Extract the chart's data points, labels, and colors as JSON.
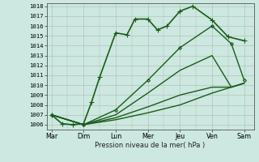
{
  "background_color": "#cce8e0",
  "grid_color": "#b0b8b0",
  "line_color": "#1a5c1a",
  "xlabel": "Pression niveau de la mer( hPa )",
  "ylim_min": 1005.5,
  "ylim_max": 1018.3,
  "yticks": [
    1006,
    1007,
    1008,
    1009,
    1010,
    1011,
    1012,
    1013,
    1014,
    1015,
    1016,
    1017,
    1018
  ],
  "x_labels": [
    "Mar",
    "Dim",
    "Lun",
    "Mer",
    "Jeu",
    "Ven",
    "Sam"
  ],
  "x_positions": [
    0,
    1,
    2,
    3,
    4,
    5,
    6
  ],
  "series": [
    {
      "x": [
        0,
        0.33,
        0.66,
        1.0,
        1.25,
        1.5,
        2.0,
        2.35,
        2.6,
        3.0,
        3.3,
        3.6,
        4.0,
        4.4,
        5.0,
        5.5,
        6.0
      ],
      "y": [
        1007.0,
        1006.1,
        1006.0,
        1006.1,
        1008.3,
        1010.8,
        1015.3,
        1015.1,
        1016.7,
        1016.7,
        1015.6,
        1016.0,
        1017.5,
        1018.0,
        1016.6,
        1014.9,
        1014.5
      ],
      "marker": "+",
      "markersize": 4,
      "linewidth": 1.2
    },
    {
      "x": [
        0,
        1.0,
        2.0,
        3.0,
        4.0,
        5.0,
        5.6,
        6.0
      ],
      "y": [
        1007.0,
        1006.0,
        1007.5,
        1010.5,
        1013.8,
        1016.0,
        1014.2,
        1010.5
      ],
      "marker": "D",
      "markersize": 2,
      "linewidth": 1.0
    },
    {
      "x": [
        0,
        1.0,
        2.0,
        3.0,
        4.0,
        5.0,
        5.6,
        6.0
      ],
      "y": [
        1007.0,
        1006.0,
        1007.0,
        1009.2,
        1011.5,
        1013.0,
        1009.8,
        1010.2
      ],
      "marker": null,
      "markersize": 0,
      "linewidth": 1.0
    },
    {
      "x": [
        0,
        1.0,
        2.0,
        3.0,
        4.0,
        5.0,
        5.6,
        6.0
      ],
      "y": [
        1007.0,
        1006.0,
        1006.7,
        1007.8,
        1009.0,
        1009.8,
        1009.8,
        1010.2
      ],
      "marker": null,
      "markersize": 0,
      "linewidth": 1.0
    },
    {
      "x": [
        0,
        1.0,
        2.0,
        3.0,
        4.0,
        5.0,
        6.0
      ],
      "y": [
        1007.0,
        1006.0,
        1006.5,
        1007.2,
        1008.0,
        1009.2,
        1010.2
      ],
      "marker": null,
      "markersize": 0,
      "linewidth": 1.0
    }
  ]
}
